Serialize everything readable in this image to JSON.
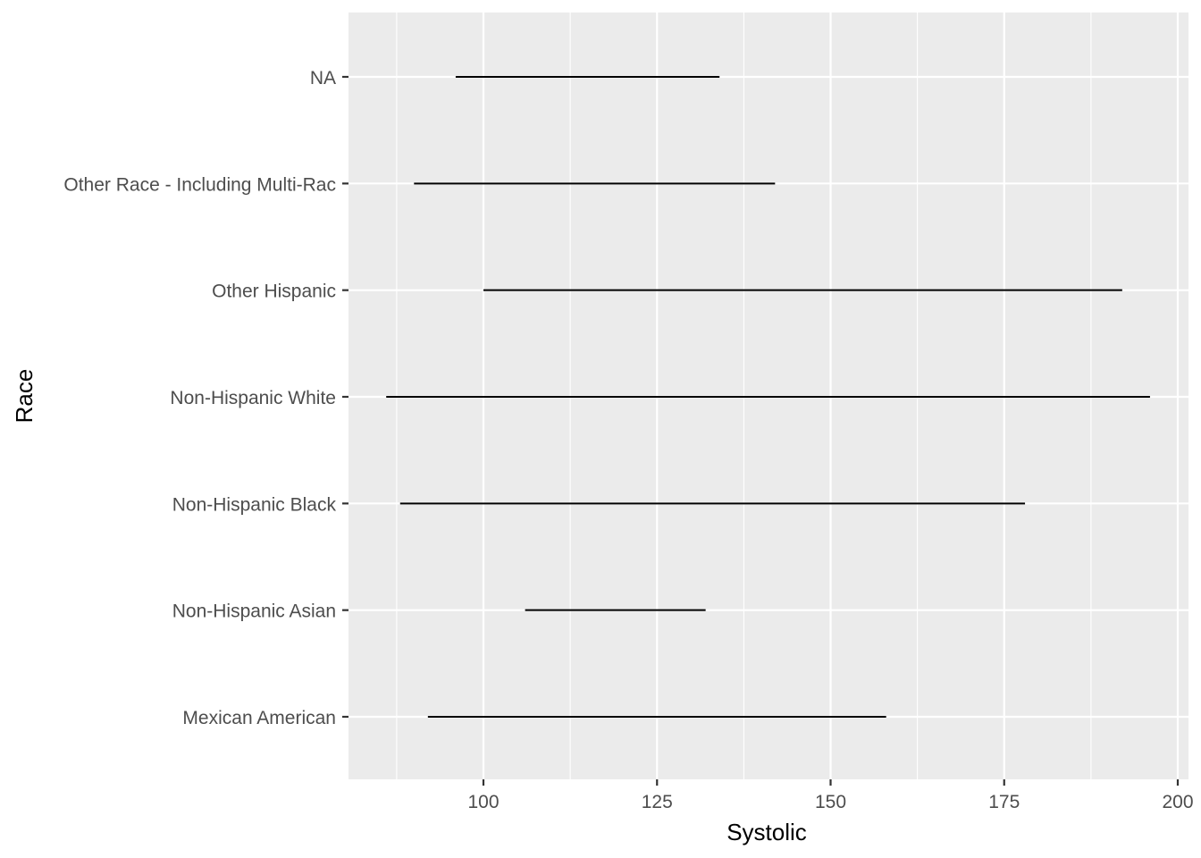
{
  "chart_data": {
    "type": "range",
    "xlabel": "Systolic",
    "ylabel": "Race",
    "xlim": [
      80.5,
      200
    ],
    "x_ticks": [
      100,
      125,
      150,
      175,
      200
    ],
    "x_minor_ticks": [
      87.5,
      112.5,
      137.5,
      162.5,
      187.5
    ],
    "grid": true,
    "categories": [
      "Mexican American",
      "Non-Hispanic Asian",
      "Non-Hispanic Black",
      "Non-Hispanic White",
      "Other Hispanic",
      "Other Race - Including Multi-Rac",
      "NA"
    ],
    "series": [
      {
        "min": [
          92,
          106,
          88,
          86,
          100,
          90,
          96
        ],
        "max": [
          158,
          132,
          178,
          196,
          192,
          142,
          134
        ]
      }
    ]
  }
}
